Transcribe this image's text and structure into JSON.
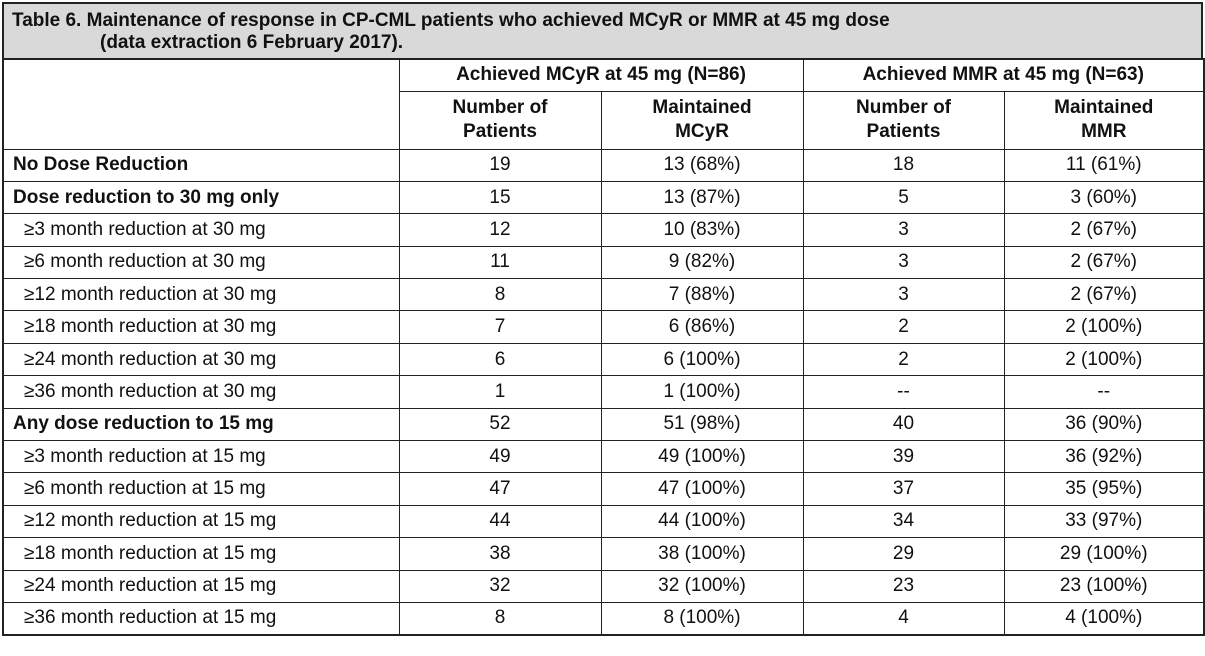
{
  "caption": {
    "line1": "Table 6. Maintenance of response in CP-CML patients who achieved MCyR or MMR at 45 mg dose",
    "line2": "(data extraction 6 February 2017)."
  },
  "header": {
    "group1": "Achieved MCyR at 45 mg (N=86)",
    "group2": "Achieved MMR at 45 mg (N=63)",
    "sub": [
      {
        "l1": "Number of",
        "l2": "Patients"
      },
      {
        "l1": "Maintained",
        "l2": "MCyR"
      },
      {
        "l1": "Number of",
        "l2": "Patients"
      },
      {
        "l1": "Maintained",
        "l2": "MMR"
      }
    ]
  },
  "rows": [
    {
      "label": "No Dose Reduction",
      "style": "bold",
      "c1": "19",
      "c2": "13 (68%)",
      "c3": "18",
      "c4": "11 (61%)"
    },
    {
      "label": "Dose reduction to 30 mg only",
      "style": "bold",
      "c1": "15",
      "c2": "13 (87%)",
      "c3": "5",
      "c4": "3 (60%)"
    },
    {
      "label": "≥3 month reduction at 30 mg",
      "style": "ind",
      "c1": "12",
      "c2": "10 (83%)",
      "c3": "3",
      "c4": "2 (67%)"
    },
    {
      "label": "≥6 month reduction at 30 mg",
      "style": "ind",
      "c1": "11",
      "c2": "9 (82%)",
      "c3": "3",
      "c4": "2 (67%)"
    },
    {
      "label": "≥12 month reduction at 30 mg",
      "style": "ind",
      "c1": "8",
      "c2": "7 (88%)",
      "c3": "3",
      "c4": "2 (67%)"
    },
    {
      "label": "≥18 month reduction at 30 mg",
      "style": "ind",
      "c1": "7",
      "c2": "6 (86%)",
      "c3": "2",
      "c4": "2 (100%)"
    },
    {
      "label": "≥24 month  reduction at 30 mg",
      "style": "ind",
      "c1": "6",
      "c2": "6 (100%)",
      "c3": "2",
      "c4": "2 (100%)"
    },
    {
      "label": "≥36 month reduction at 30 mg",
      "style": "ind",
      "c1": "1",
      "c2": "1 (100%)",
      "c3": "--",
      "c4": "--"
    },
    {
      "label": "Any dose reduction to 15 mg",
      "style": "bold",
      "c1": "52",
      "c2": "51 (98%)",
      "c3": "40",
      "c4": "36 (90%)"
    },
    {
      "label": "≥3 month reduction at 15 mg",
      "style": "ind",
      "c1": "49",
      "c2": "49 (100%)",
      "c3": "39",
      "c4": "36 (92%)"
    },
    {
      "label": "≥6 month reduction at 15 mg",
      "style": "ind",
      "c1": "47",
      "c2": "47 (100%)",
      "c3": "37",
      "c4": "35 (95%)"
    },
    {
      "label": "≥12 month reduction at 15 mg",
      "style": "ind",
      "c1": "44",
      "c2": "44 (100%)",
      "c3": "34",
      "c4": "33 (97%)"
    },
    {
      "label": "≥18 month reduction at 15 mg",
      "style": "ind",
      "c1": "38",
      "c2": "38 (100%)",
      "c3": "29",
      "c4": "29 (100%)"
    },
    {
      "label": "≥24 month reduction at 15 mg",
      "style": "ind",
      "c1": "32",
      "c2": "32 (100%)",
      "c3": "23",
      "c4": "23 (100%)"
    },
    {
      "label": "≥36 month reduction at 15 mg",
      "style": "ind",
      "c1": "8",
      "c2": "8 (100%)",
      "c3": "4",
      "c4": "4 (100%)"
    }
  ]
}
